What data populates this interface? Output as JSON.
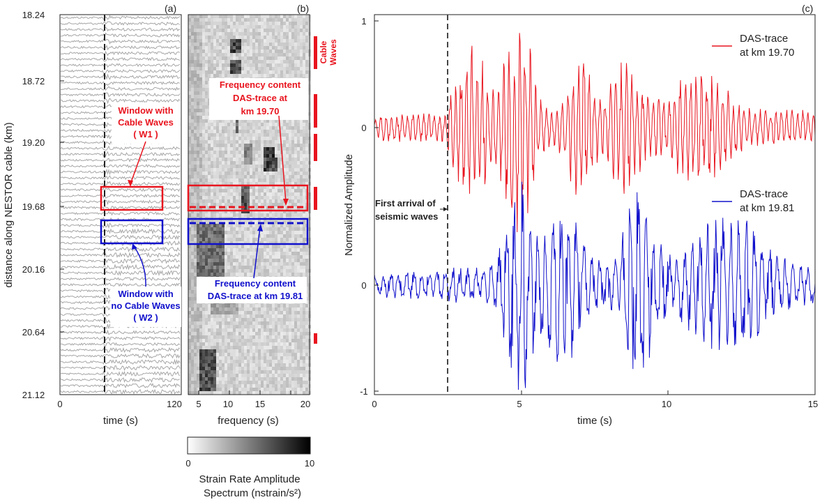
{
  "colors": {
    "red": "#e8141e",
    "blue": "#1010cc",
    "gray": "#a6a6a6",
    "dark": "#222222"
  },
  "panels": {
    "a": "(a)",
    "b": "(b)",
    "c": "(c)"
  },
  "panel_a": {
    "ylabel": "distance along NESTOR cable (km)",
    "xlabel": "time (s)",
    "y_ticks": [
      "18.24",
      "18.72",
      "19.20",
      "19.68",
      "20.16",
      "20.64",
      "21.12"
    ],
    "x_ticks": [
      "0",
      "120"
    ],
    "annotation_w1": [
      "Window with",
      "Cable Waves",
      "( W1 )"
    ],
    "annotation_w2": [
      "Window with",
      "no Cable Waves",
      "( W2 )"
    ]
  },
  "panel_b": {
    "xlabel": "frequency (s)",
    "x_ticks": [
      "5",
      "10",
      "15",
      "20"
    ],
    "cable_waves": [
      "Cable",
      "Waves"
    ],
    "annotation_red": [
      "Frequency content",
      "DAS-trace at",
      "km 19.70"
    ],
    "annotation_blue": [
      "Frequency content",
      "DAS-trace at km 19.81"
    ],
    "colorbar": {
      "min": "0",
      "max": "10",
      "label": [
        "Strain Rate Amplitude",
        "Spectrum (nstrain/s²)"
      ]
    }
  },
  "chart_data": [
    {
      "type": "line",
      "title": "",
      "xlabel": "time (s)",
      "ylabel": "Normalized Amplitude",
      "xlim": [
        0,
        15
      ],
      "x_ticks": [
        "0",
        "5",
        "10",
        "15"
      ],
      "first_arrival_s": 2.5,
      "first_arrival_label": [
        "First arrival of",
        "seismic waves"
      ],
      "series": [
        {
          "name": "DAS-trace at km 19.70",
          "legend": [
            "DAS-trace",
            "at km 19.70"
          ],
          "color": "#e8141e",
          "ylim": [
            -1,
            1
          ],
          "y_ticks": [
            "1",
            "0"
          ]
        },
        {
          "name": "DAS-trace at km 19.81",
          "legend": [
            "DAS-trace",
            "at km 19.81"
          ],
          "color": "#1010cc",
          "ylim": [
            -1,
            1
          ],
          "y_ticks": [
            "0",
            "-1"
          ]
        }
      ]
    },
    {
      "type": "heatmap",
      "xlabel": "frequency (s)",
      "xlim": [
        0,
        20
      ],
      "colorbar_range": [
        0,
        10
      ]
    }
  ]
}
